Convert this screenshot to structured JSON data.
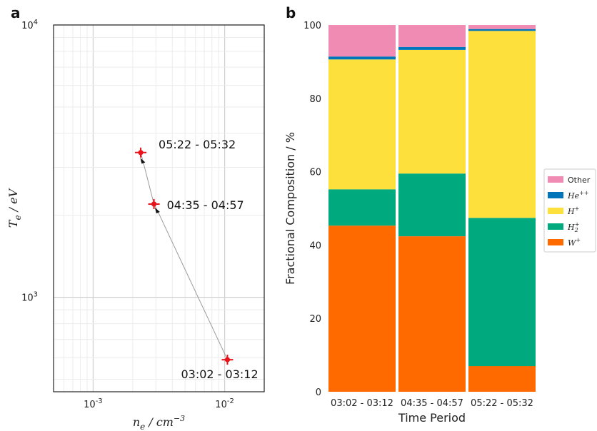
{
  "panels": {
    "a": "a",
    "b": "b"
  },
  "chart_data": [
    {
      "type": "scatter",
      "panel": "a",
      "xscale": "log",
      "yscale": "log",
      "xlim": [
        0.0005,
        0.02
      ],
      "ylim": [
        450,
        10000
      ],
      "grid": true,
      "xticks": [
        {
          "value": 0.001,
          "base": "10",
          "exp": "-3"
        },
        {
          "value": 0.01,
          "base": "10",
          "exp": "-2"
        }
      ],
      "yticks": [
        {
          "value": 1000,
          "base": "10",
          "exp": "3"
        },
        {
          "value": 10000,
          "base": "10",
          "exp": "4"
        }
      ],
      "xlabel": {
        "var": "n",
        "sub": "e",
        "unit": " / cm",
        "sup": "−3"
      },
      "ylabel": {
        "var": "T",
        "sub": "e",
        "unit": " / eV"
      },
      "points": [
        {
          "label": "03:02 - 03:12",
          "x": 0.0105,
          "y": 590
        },
        {
          "label": "04:35 - 04:57",
          "x": 0.0029,
          "y": 2200
        },
        {
          "label": "05:22 - 05:32",
          "x": 0.0023,
          "y": 3400
        }
      ],
      "trend_line": [
        {
          "x": 0.0023,
          "y": 3400
        },
        {
          "x": 0.0024,
          "y": 3150
        },
        {
          "x": 0.0029,
          "y": 2200
        },
        {
          "x": 0.0031,
          "y": 2070
        },
        {
          "x": 0.0105,
          "y": 590
        }
      ],
      "point_color": "#e8121a",
      "line_color": "#9a9a9a"
    },
    {
      "type": "bar",
      "stacked": true,
      "panel": "b",
      "categories": [
        "03:02 - 03:12",
        "04:35 - 04:57",
        "05:22 - 05:32"
      ],
      "xlabel": "Time Period",
      "ylabel": "Fractional Composition / %",
      "ylim": [
        0,
        100
      ],
      "yticks": [
        0,
        20,
        40,
        60,
        80,
        100
      ],
      "legend_position": "right",
      "series": [
        {
          "name": "W",
          "sup": "+",
          "sub": "",
          "color": "#ff6a00",
          "values": [
            45.3,
            42.4,
            7.0
          ]
        },
        {
          "name": "H",
          "sup": "+",
          "sub": "2",
          "color": "#00a97e",
          "values": [
            9.9,
            17.1,
            40.4
          ]
        },
        {
          "name": "H",
          "sup": "+",
          "sub": "",
          "color": "#fde03b",
          "values": [
            35.4,
            33.7,
            51.0
          ]
        },
        {
          "name": "He",
          "sup": "++",
          "sub": "",
          "color": "#0075b9",
          "values": [
            0.8,
            0.8,
            0.5
          ]
        },
        {
          "name": "Other",
          "sup": "",
          "sub": "",
          "color": "#f08cb4",
          "values": [
            8.6,
            6.0,
            1.1
          ]
        }
      ]
    }
  ]
}
